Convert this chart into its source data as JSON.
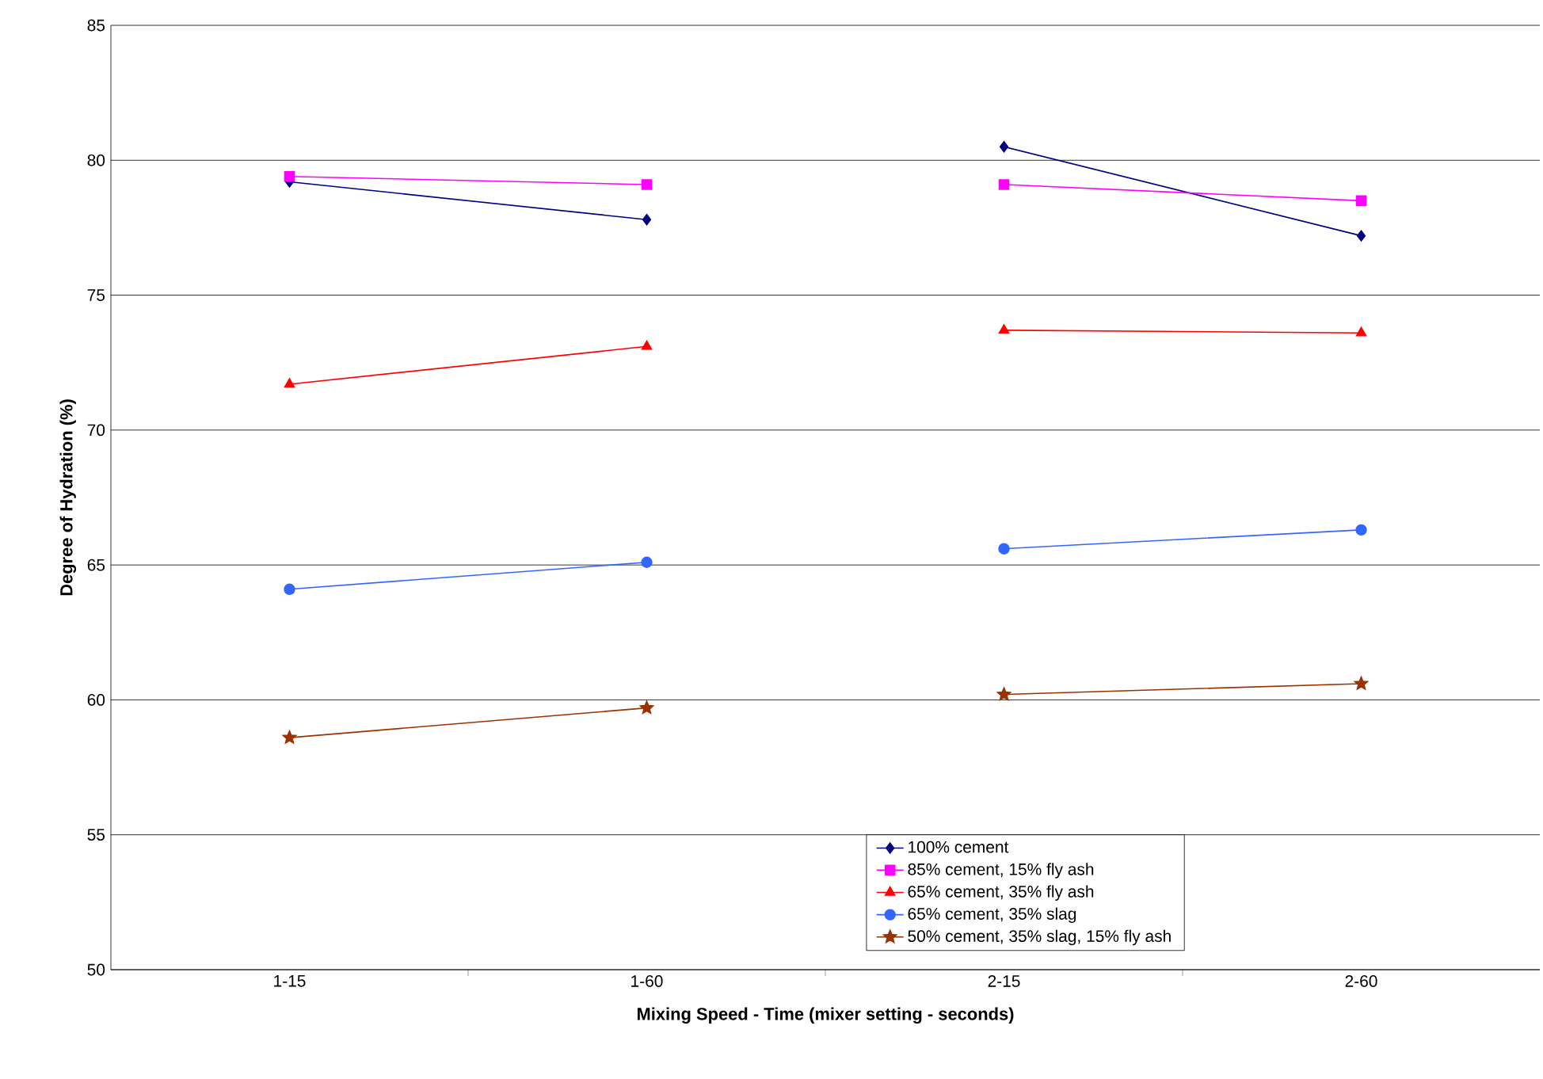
{
  "chart_data": {
    "type": "line",
    "xlabel": "Mixing Speed - Time (mixer setting - seconds)",
    "ylabel": "Degree of Hydration (%)",
    "categories": [
      "1-15",
      "1-60",
      "2-15",
      "2-60"
    ],
    "ylim": [
      50,
      85
    ],
    "yticks": [
      50,
      55,
      60,
      65,
      70,
      75,
      80,
      85
    ],
    "grid": "y",
    "legend": "bottom",
    "series": [
      {
        "name": "100% cement",
        "color": "#000080",
        "marker": "diamond",
        "values": [
          79.2,
          77.8,
          80.5,
          77.2
        ]
      },
      {
        "name": "85% cement, 15% fly ash",
        "color": "#ff00ff",
        "marker": "square",
        "values": [
          79.4,
          79.1,
          79.1,
          78.5
        ]
      },
      {
        "name": "65% cement, 35% fly ash",
        "color": "#ff0000",
        "marker": "triangle",
        "values": [
          71.7,
          73.1,
          73.7,
          73.6
        ]
      },
      {
        "name": "65% cement, 35% slag",
        "color": "#3366ff",
        "marker": "circle",
        "values": [
          64.1,
          65.1,
          65.6,
          66.3
        ]
      },
      {
        "name": "50% cement, 35% slag, 15% fly ash",
        "color": "#993300",
        "marker": "star",
        "values": [
          58.6,
          59.7,
          60.2,
          60.6
        ]
      }
    ]
  }
}
